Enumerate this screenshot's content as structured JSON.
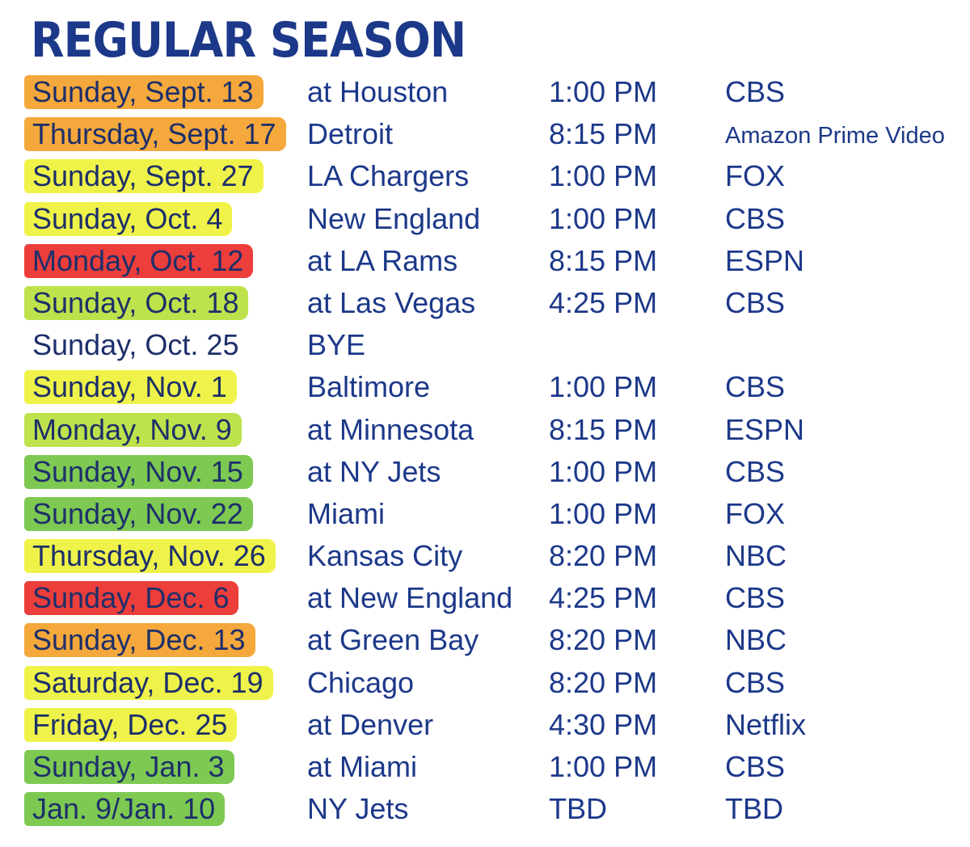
{
  "title": "REGULAR SEASON",
  "colors": {
    "text": "#1c3889",
    "orange": "#f4a12a",
    "yellow": "#eef23a",
    "red": "#ea2e2a",
    "yellow_green": "#b9e03d",
    "green": "#72c443",
    "none": "transparent"
  },
  "games": [
    {
      "date": "Sunday, Sept. 13",
      "opponent": "at Houston",
      "time": "1:00 PM",
      "network": "CBS",
      "highlight": "orange"
    },
    {
      "date": "Thursday, Sept. 17",
      "opponent": "Detroit",
      "time": "8:15 PM",
      "network": "Amazon Prime Video",
      "highlight": "orange"
    },
    {
      "date": "Sunday, Sept. 27",
      "opponent": "LA Chargers",
      "time": "1:00 PM",
      "network": "FOX",
      "highlight": "yellow"
    },
    {
      "date": "Sunday, Oct. 4",
      "opponent": "New England",
      "time": "1:00 PM",
      "network": "CBS",
      "highlight": "yellow"
    },
    {
      "date": "Monday, Oct. 12",
      "opponent": "at LA Rams",
      "time": "8:15 PM",
      "network": "ESPN",
      "highlight": "red"
    },
    {
      "date": "Sunday, Oct. 18",
      "opponent": "at Las Vegas",
      "time": "4:25 PM",
      "network": "CBS",
      "highlight": "yellow_green"
    },
    {
      "date": "Sunday, Oct. 25",
      "opponent": "BYE",
      "time": "",
      "network": "",
      "highlight": "none"
    },
    {
      "date": "Sunday, Nov. 1",
      "opponent": "Baltimore",
      "time": "1:00 PM",
      "network": "CBS",
      "highlight": "yellow"
    },
    {
      "date": "Monday, Nov. 9",
      "opponent": "at Minnesota",
      "time": "8:15 PM",
      "network": "ESPN",
      "highlight": "yellow_green"
    },
    {
      "date": "Sunday, Nov. 15",
      "opponent": "at NY Jets",
      "time": "1:00 PM",
      "network": "CBS",
      "highlight": "green"
    },
    {
      "date": "Sunday, Nov. 22",
      "opponent": "Miami",
      "time": "1:00 PM",
      "network": "FOX",
      "highlight": "green"
    },
    {
      "date": "Thursday, Nov. 26",
      "opponent": "Kansas City",
      "time": "8:20 PM",
      "network": "NBC",
      "highlight": "yellow"
    },
    {
      "date": "Sunday, Dec. 6",
      "opponent": "at New England",
      "time": "4:25 PM",
      "network": "CBS",
      "highlight": "red"
    },
    {
      "date": "Sunday, Dec. 13",
      "opponent": "at Green Bay",
      "time": "8:20 PM",
      "network": "NBC",
      "highlight": "orange"
    },
    {
      "date": "Saturday, Dec. 19",
      "opponent": "Chicago",
      "time": "8:20 PM",
      "network": "CBS",
      "highlight": "yellow"
    },
    {
      "date": "Friday, Dec. 25",
      "opponent": "at Denver",
      "time": "4:30 PM",
      "network": "Netflix",
      "highlight": "yellow"
    },
    {
      "date": "Sunday, Jan. 3",
      "opponent": "at Miami",
      "time": "1:00 PM",
      "network": "CBS",
      "highlight": "green"
    },
    {
      "date": "Jan. 9/Jan. 10",
      "opponent": "NY Jets",
      "time": "TBD",
      "network": "TBD",
      "highlight": "green"
    }
  ]
}
